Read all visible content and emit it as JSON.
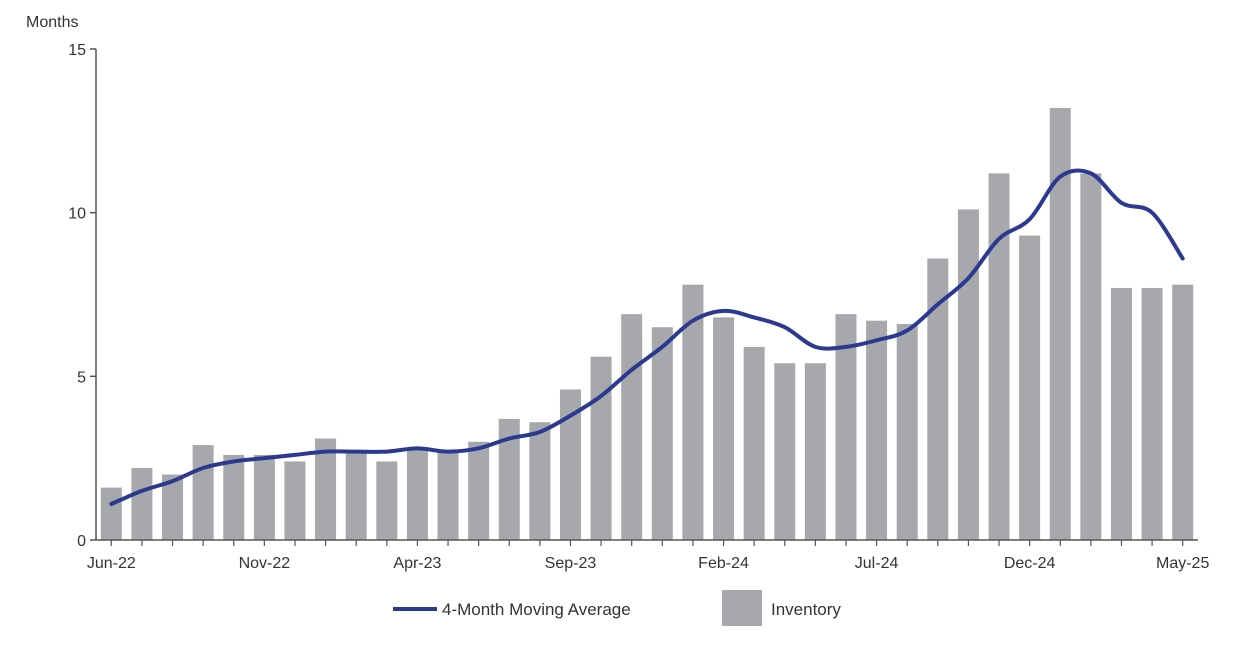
{
  "chart_data": {
    "type": "bar",
    "y_unit_label": "Months",
    "ylim": [
      0,
      15
    ],
    "y_ticks": [
      0,
      5,
      10,
      15
    ],
    "grid": false,
    "legend_placement": "bottom-center",
    "categories": [
      "Jun-22",
      "Jul-22",
      "Aug-22",
      "Sep-22",
      "Oct-22",
      "Nov-22",
      "Dec-22",
      "Jan-23",
      "Feb-23",
      "Mar-23",
      "Apr-23",
      "May-23",
      "Jun-23",
      "Jul-23",
      "Aug-23",
      "Sep-23",
      "Oct-23",
      "Nov-23",
      "Dec-23",
      "Jan-24",
      "Feb-24",
      "Mar-24",
      "Apr-24",
      "May-24",
      "Jun-24",
      "Jul-24",
      "Aug-24",
      "Sep-24",
      "Oct-24",
      "Nov-24",
      "Dec-24",
      "Jan-25",
      "Feb-25",
      "Mar-25",
      "Apr-25",
      "May-25"
    ],
    "x_tick_labels": [
      "Jun-22",
      "Nov-22",
      "Apr-23",
      "Sep-23",
      "Feb-24",
      "Jul-24",
      "Dec-24",
      "May-25"
    ],
    "series": [
      {
        "name": "Inventory",
        "kind": "bar",
        "color": "#a7a8ac",
        "values": [
          1.6,
          2.2,
          2.0,
          2.9,
          2.6,
          2.6,
          2.4,
          3.1,
          2.7,
          2.4,
          2.8,
          2.7,
          3.0,
          3.7,
          3.6,
          4.6,
          5.6,
          6.9,
          6.5,
          7.8,
          6.8,
          5.9,
          5.4,
          5.4,
          6.9,
          6.7,
          6.6,
          8.6,
          10.1,
          11.2,
          9.3,
          13.2,
          11.2,
          7.7,
          7.7,
          7.8
        ]
      },
      {
        "name": "4-Month Moving Average",
        "kind": "line",
        "color": "#2b3990",
        "values": [
          1.1,
          1.5,
          1.8,
          2.2,
          2.4,
          2.5,
          2.6,
          2.7,
          2.7,
          2.7,
          2.8,
          2.7,
          2.8,
          3.1,
          3.3,
          3.8,
          4.4,
          5.2,
          5.9,
          6.7,
          7.0,
          6.8,
          6.5,
          5.9,
          5.9,
          6.1,
          6.4,
          7.2,
          8.0,
          9.2,
          9.8,
          11.1,
          11.2,
          10.3,
          10.0,
          8.6
        ]
      }
    ]
  },
  "legend": {
    "line_label": "4-Month Moving Average",
    "bar_label": "Inventory"
  }
}
